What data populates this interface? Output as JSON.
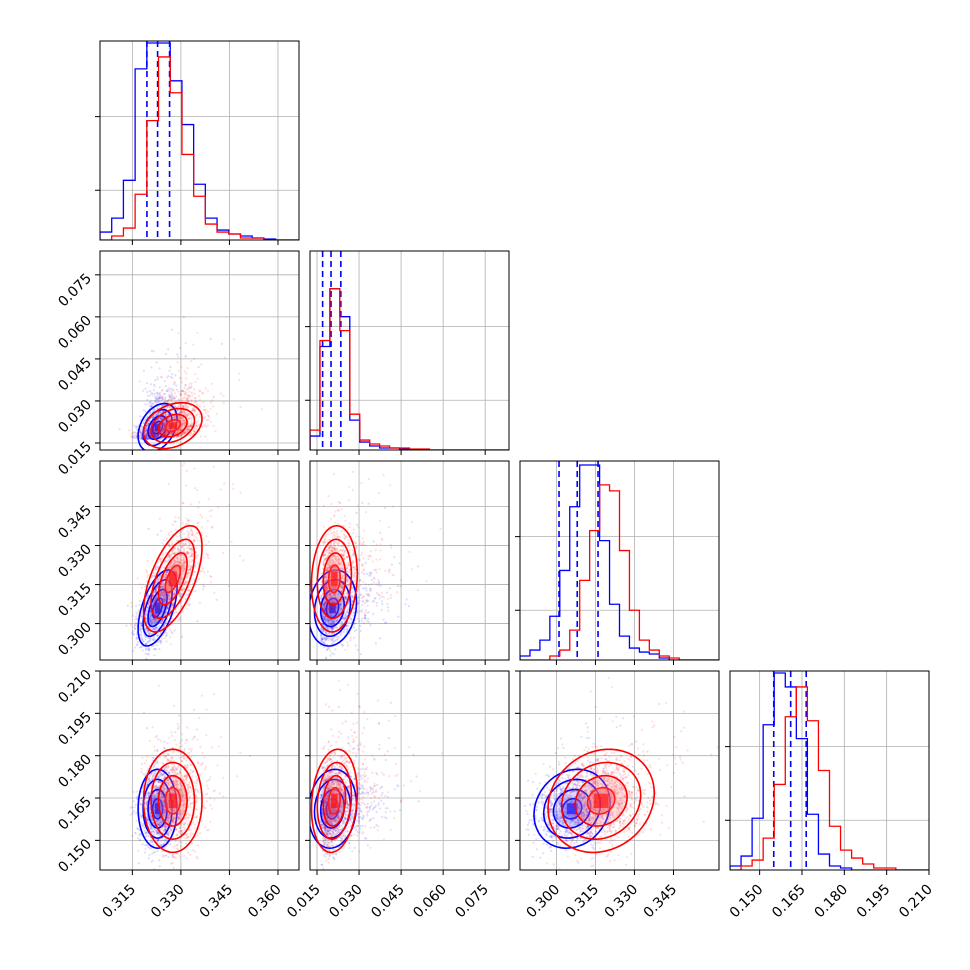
{
  "chart_data": {
    "type": "corner",
    "colors": {
      "series_a": "#0000ff",
      "series_b": "#ff0000",
      "dashed": "#0000ff"
    },
    "grid": true,
    "parameters": [
      {
        "index": 0,
        "range": [
          0.305,
          0.3665
        ],
        "ticks": [
          0.315,
          0.33,
          0.345,
          0.36
        ],
        "tick_labels": [
          "0.315",
          "0.330",
          "0.345",
          "0.360"
        ]
      },
      {
        "index": 1,
        "range": [
          0.0125,
          0.0835
        ],
        "ticks": [
          0.015,
          0.03,
          0.045,
          0.06,
          0.075
        ],
        "tick_labels": [
          "0.015",
          "0.030",
          "0.045",
          "0.060",
          "0.075"
        ]
      },
      {
        "index": 2,
        "range": [
          0.286,
          0.3625
        ],
        "ticks": [
          0.3,
          0.315,
          0.33,
          0.345
        ],
        "tick_labels": [
          "0.300",
          "0.315",
          "0.330",
          "0.345"
        ]
      },
      {
        "index": 3,
        "range": [
          0.1395,
          0.21
        ],
        "ticks": [
          0.15,
          0.165,
          0.18,
          0.195,
          0.21
        ],
        "tick_labels": [
          "0.150",
          "0.165",
          "0.180",
          "0.195",
          "0.210"
        ]
      }
    ],
    "series": [
      {
        "color": "#0000ff",
        "mean": [
          0.3228,
          0.0205,
          0.306,
          0.1612
        ],
        "sigma": [
          0.0028,
          0.004,
          0.0068,
          0.0065
        ],
        "corr": {
          "0-1": 0.35,
          "0-2": 0.55,
          "0-3": 0.0,
          "1-2": 0.15,
          "1-3": 0.1,
          "2-3": 0.15
        },
        "quantiles": [
          [
            0.3195,
            0.3228,
            0.3265
          ],
          [
            0.017,
            0.02,
            0.0235
          ],
          [
            0.301,
            0.308,
            0.316
          ],
          [
            0.155,
            0.161,
            0.1665
          ]
        ],
        "hist": [
          [
            0.04,
            0.11,
            0.3,
            0.86,
            0.99,
            0.99,
            0.8,
            0.58,
            0.28,
            0.11,
            0.05,
            0.03,
            0.02,
            0.01,
            0.005,
            0.0,
            0.0
          ],
          [
            0.07,
            0.52,
            0.81,
            0.67,
            0.15,
            0.04,
            0.02,
            0.01,
            0.01,
            0.005,
            0.0,
            0.0,
            0.0,
            0.0,
            0.0,
            0.0,
            0.0,
            0.0,
            0.0,
            0.0
          ],
          [
            0.02,
            0.05,
            0.1,
            0.22,
            0.45,
            0.77,
            0.98,
            0.98,
            0.6,
            0.28,
            0.12,
            0.06,
            0.04,
            0.03,
            0.01,
            0.0,
            0.0,
            0.0,
            0.0,
            0.0
          ],
          [
            0.02,
            0.07,
            0.26,
            0.73,
            0.99,
            0.92,
            0.66,
            0.28,
            0.08,
            0.02,
            0.01,
            0.0,
            0.0,
            0.0,
            0.0,
            0.0,
            0.0,
            0.0
          ]
        ]
      },
      {
        "color": "#ff0000",
        "mean": [
          0.3275,
          0.0212,
          0.3172,
          0.164
        ],
        "sigma": [
          0.0042,
          0.0038,
          0.0095,
          0.0085
        ],
        "corr": {
          "0-1": 0.3,
          "0-2": 0.6,
          "0-3": 0.0,
          "1-2": 0.1,
          "1-3": 0.15,
          "2-3": 0.15
        },
        "quantiles": [],
        "hist": [
          [
            0.0,
            0.02,
            0.06,
            0.23,
            0.6,
            0.92,
            0.74,
            0.43,
            0.22,
            0.08,
            0.04,
            0.03,
            0.01,
            0.01,
            0.0,
            0.0,
            0.0
          ],
          [
            0.1,
            0.55,
            0.81,
            0.6,
            0.18,
            0.05,
            0.03,
            0.02,
            0.01,
            0.01,
            0.005,
            0.005,
            0.0,
            0.0,
            0.0,
            0.0,
            0.0,
            0.0,
            0.0,
            0.0
          ],
          [
            0.0,
            0.0,
            0.0,
            0.02,
            0.05,
            0.15,
            0.4,
            0.65,
            0.88,
            0.85,
            0.55,
            0.25,
            0.1,
            0.05,
            0.02,
            0.01,
            0.0,
            0.0,
            0.0,
            0.0
          ],
          [
            0.0,
            0.02,
            0.05,
            0.16,
            0.43,
            0.77,
            0.92,
            0.75,
            0.5,
            0.22,
            0.1,
            0.06,
            0.03,
            0.01,
            0.01,
            0.0,
            0.0,
            0.0
          ]
        ]
      }
    ]
  }
}
